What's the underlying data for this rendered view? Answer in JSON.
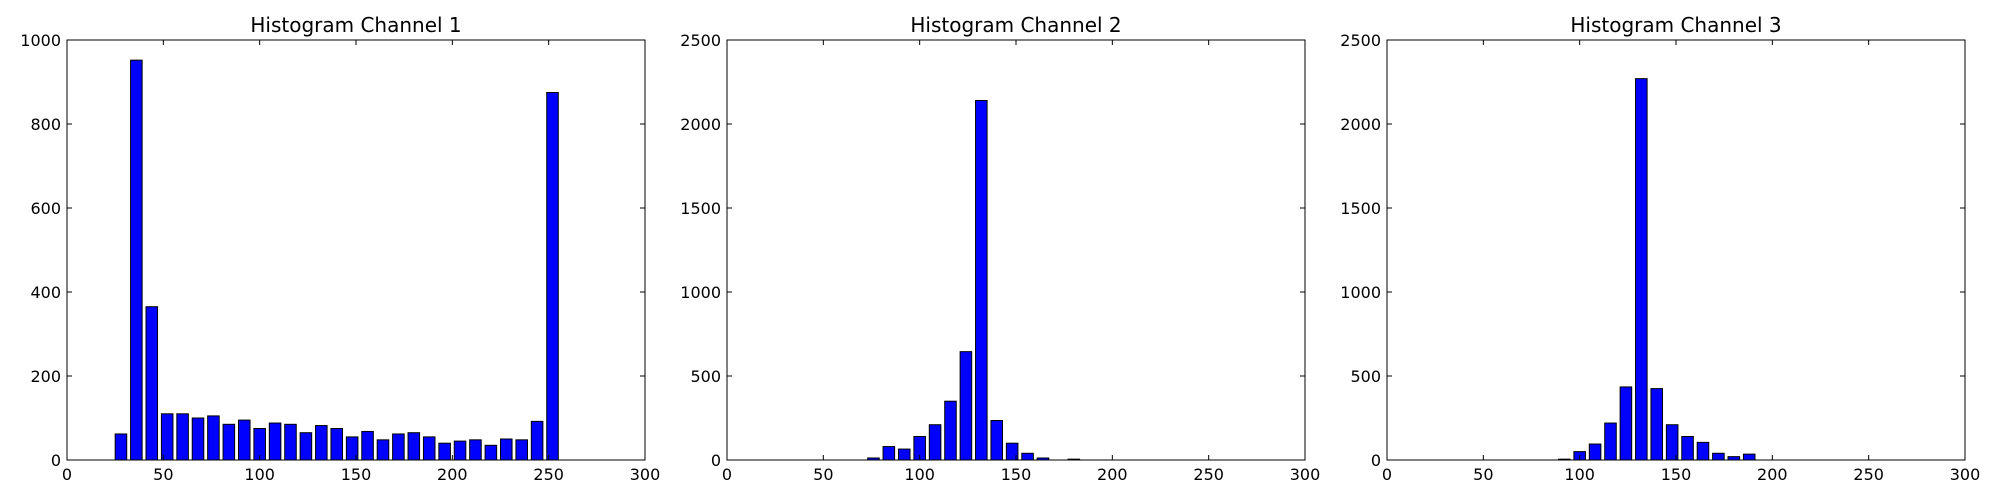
{
  "chart_data": [
    {
      "type": "bar",
      "title": "Histogram Channel 1",
      "xlabel": "",
      "ylabel": "",
      "xlim": [
        0,
        300
      ],
      "ylim": [
        0,
        1000
      ],
      "xticks": [
        0,
        50,
        100,
        150,
        200,
        250,
        300
      ],
      "yticks": [
        0,
        200,
        400,
        600,
        800,
        1000
      ],
      "bar_width": 6,
      "color": "#0000ff",
      "grid": false,
      "x": [
        4,
        12,
        20,
        28,
        36,
        44,
        52,
        60,
        68,
        76,
        84,
        92,
        100,
        108,
        116,
        124,
        132,
        140,
        148,
        156,
        164,
        172,
        180,
        188,
        196,
        204,
        212,
        220,
        228,
        236,
        244,
        252
      ],
      "values": [
        0,
        0,
        0,
        62,
        952,
        365,
        110,
        110,
        100,
        105,
        85,
        95,
        75,
        88,
        85,
        65,
        82,
        75,
        55,
        68,
        48,
        62,
        65,
        55,
        40,
        45,
        48,
        35,
        50,
        48,
        92,
        875
      ]
    },
    {
      "type": "bar",
      "title": "Histogram Channel 2",
      "xlabel": "",
      "ylabel": "",
      "xlim": [
        0,
        300
      ],
      "ylim": [
        0,
        2500
      ],
      "xticks": [
        0,
        50,
        100,
        150,
        200,
        250,
        300
      ],
      "yticks": [
        0,
        500,
        1000,
        1500,
        2000,
        2500
      ],
      "bar_width": 6,
      "color": "#0000ff",
      "grid": false,
      "x": [
        4,
        12,
        20,
        28,
        36,
        44,
        52,
        60,
        68,
        76,
        84,
        92,
        100,
        108,
        116,
        124,
        132,
        140,
        148,
        156,
        164,
        172,
        180,
        188,
        196,
        204,
        212,
        220,
        228,
        236,
        244,
        252
      ],
      "values": [
        0,
        0,
        0,
        0,
        0,
        0,
        0,
        0,
        0,
        12,
        80,
        65,
        140,
        210,
        350,
        645,
        2140,
        235,
        100,
        40,
        12,
        0,
        5,
        0,
        0,
        0,
        0,
        0,
        0,
        0,
        0,
        0
      ]
    },
    {
      "type": "bar",
      "title": "Histogram Channel 3",
      "xlabel": "",
      "ylabel": "",
      "xlim": [
        0,
        300
      ],
      "ylim": [
        0,
        2500
      ],
      "xticks": [
        0,
        50,
        100,
        150,
        200,
        250,
        300
      ],
      "yticks": [
        0,
        500,
        1000,
        1500,
        2000,
        2500
      ],
      "bar_width": 6,
      "color": "#0000ff",
      "grid": false,
      "x": [
        4,
        12,
        20,
        28,
        36,
        44,
        52,
        60,
        68,
        76,
        84,
        92,
        100,
        108,
        116,
        124,
        132,
        140,
        148,
        156,
        164,
        172,
        180,
        188,
        196,
        204,
        212,
        220,
        228,
        236,
        244,
        252
      ],
      "values": [
        0,
        0,
        0,
        0,
        0,
        0,
        0,
        0,
        0,
        0,
        0,
        5,
        50,
        95,
        220,
        435,
        2270,
        425,
        210,
        140,
        105,
        40,
        20,
        35,
        0,
        0,
        0,
        0,
        0,
        0,
        0,
        0
      ]
    }
  ]
}
